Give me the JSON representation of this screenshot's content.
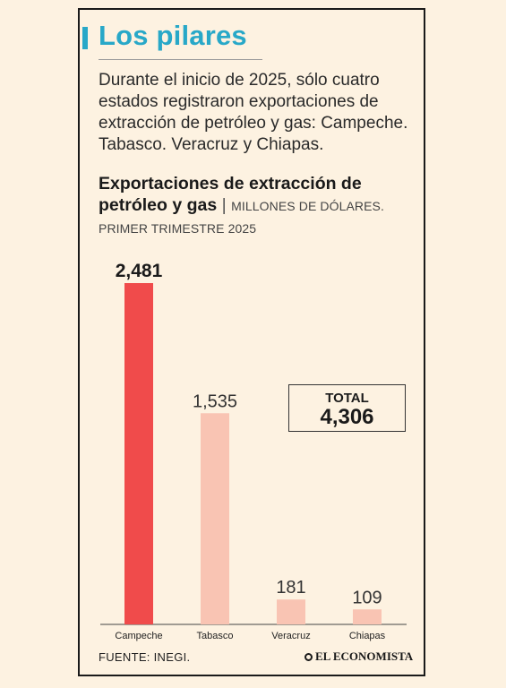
{
  "header": {
    "title": "Los pilares",
    "intro": "Durante el inicio de 2025, sólo cuatro estados registraron exportaciones de extracción de petróleo y gas: Campeche. Tabasco. Veracruz y Chiapas."
  },
  "chart_data": {
    "type": "bar",
    "title": "Exportaciones de extracción de petróleo y gas",
    "subtitle": "MILLONES DE DÓLARES. PRIMER TRIMESTRE 2025",
    "categories": [
      "Campeche",
      "Tabasco",
      "Veracruz",
      "Chiapas"
    ],
    "values": [
      2481,
      1535,
      181,
      109
    ],
    "value_labels": [
      "2,481",
      "1,535",
      "181",
      "109"
    ],
    "ylim": [
      0,
      2481
    ],
    "grid": false,
    "colors": [
      "#f04b4b",
      "#f9c4b3",
      "#f9c4b3",
      "#f9c4b3"
    ]
  },
  "total": {
    "label": "TOTAL",
    "value": "4,306"
  },
  "footer": {
    "source": "FUENTE: INEGI.",
    "brand": "EL ECONOMISTA"
  }
}
